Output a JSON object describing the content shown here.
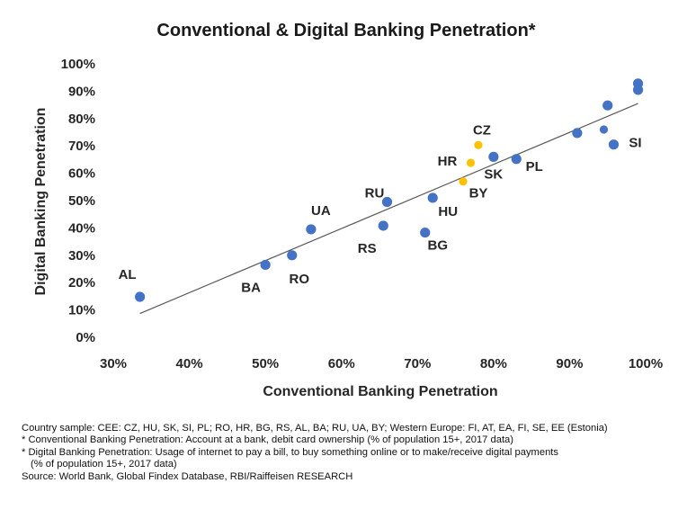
{
  "chart_data": {
    "type": "scatter",
    "title": "Conventional & Digital Banking Penetration*",
    "xlabel": "Conventional Banking Penetration",
    "ylabel": "Digital Banking Penetration",
    "xlim": [
      30,
      100
    ],
    "ylim": [
      0,
      100
    ],
    "x_ticks": [
      "30%",
      "40%",
      "50%",
      "60%",
      "70%",
      "80%",
      "90%",
      "100%"
    ],
    "y_ticks": [
      "0%",
      "10%",
      "20%",
      "30%",
      "40%",
      "50%",
      "60%",
      "70%",
      "80%",
      "90%",
      "100%"
    ],
    "grid": false,
    "trendline": {
      "from": [
        33.5,
        8.7
      ],
      "to": [
        99,
        85.5
      ]
    },
    "colors": {
      "primary": "#4472c4",
      "highlight": "#ffc000",
      "trend": "#595959"
    },
    "points": [
      {
        "label": "AL",
        "x": 33.5,
        "y": 14.8,
        "group": "primary"
      },
      {
        "label": "BA",
        "x": 50,
        "y": 26.5,
        "group": "primary"
      },
      {
        "label": "RO",
        "x": 53.5,
        "y": 30,
        "group": "primary"
      },
      {
        "label": "UA",
        "x": 56,
        "y": 39.5,
        "group": "primary"
      },
      {
        "label": "RS",
        "x": 65.5,
        "y": 40.8,
        "group": "primary"
      },
      {
        "label": "RU",
        "x": 66,
        "y": 49.5,
        "group": "primary"
      },
      {
        "label": "BG",
        "x": 71,
        "y": 38.3,
        "group": "primary"
      },
      {
        "label": "HU",
        "x": 72,
        "y": 51,
        "group": "primary"
      },
      {
        "label": "BY",
        "x": 76,
        "y": 57,
        "group": "highlight"
      },
      {
        "label": "HR",
        "x": 77,
        "y": 63.8,
        "group": "highlight"
      },
      {
        "label": "CZ",
        "x": 78,
        "y": 70.3,
        "group": "highlight"
      },
      {
        "label": "SK",
        "x": 80,
        "y": 66,
        "group": "primary"
      },
      {
        "label": "PL",
        "x": 83,
        "y": 65.2,
        "group": "primary"
      },
      {
        "label": "",
        "x": 91,
        "y": 74.7,
        "group": "primary"
      },
      {
        "label": "",
        "x": 94.5,
        "y": 76,
        "group": "primary"
      },
      {
        "label": "",
        "x": 95,
        "y": 84.8,
        "group": "primary"
      },
      {
        "label": "SI",
        "x": 95.8,
        "y": 70.5,
        "group": "primary"
      },
      {
        "label": "",
        "x": 99,
        "y": 90.5,
        "group": "primary"
      },
      {
        "label": "",
        "x": 99,
        "y": 92.8,
        "group": "primary"
      }
    ]
  },
  "notes": {
    "line1": "Country sample: CEE:  CZ, HU, SK, SI, PL; RO,  HR, BG, RS,  AL, BA; RU, UA, BY; Western Europe: FI, AT, EA, FI, SE, EE (Estonia)",
    "line2": "* Conventional Banking Penetration: Account at a bank, debit card ownership (% of population 15+, 2017 data)",
    "line3": "* Digital Banking Penetration: Usage of internet to pay a bill, to buy something online or to make/receive digital payments",
    "line4": "(% of population 15+, 2017 data)",
    "line5": "Source: World Bank, Global Findex Database, RBI/Raiffeisen RESEARCH"
  }
}
